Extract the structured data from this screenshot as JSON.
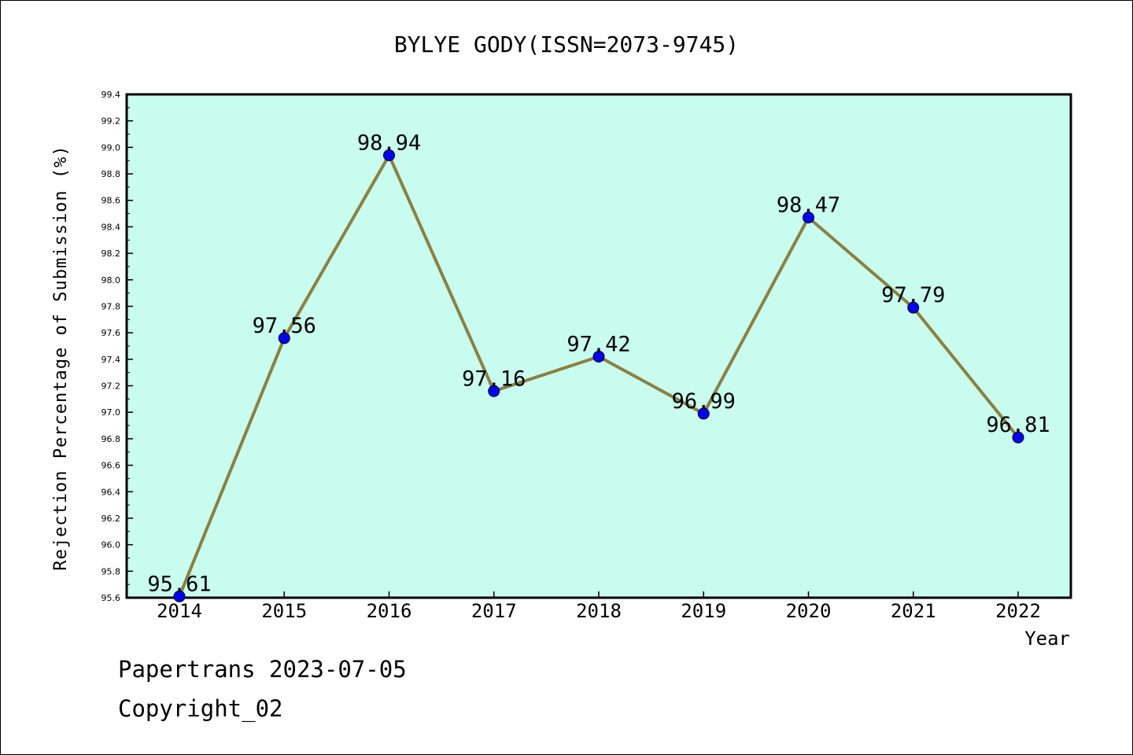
{
  "chart_data": {
    "type": "line",
    "title": "BYLYE GODY(ISSN=2073-9745)",
    "xlabel": "Year",
    "ylabel": "Rejection Percentage of Submission (%)",
    "categories": [
      "2014",
      "2015",
      "2016",
      "2017",
      "2018",
      "2019",
      "2020",
      "2021",
      "2022"
    ],
    "series": [
      {
        "values": [
          95.61,
          97.56,
          98.94,
          97.16,
          97.42,
          96.99,
          98.47,
          97.79,
          96.81
        ],
        "labels": [
          "95.61",
          "97.56",
          "98.94",
          "97.16",
          "97.42",
          "96.99",
          "98.47",
          "97.79",
          "96.81"
        ]
      }
    ],
    "ylim": [
      95.6,
      99.4
    ],
    "yticks": [
      "95.6",
      "95.8",
      "96.0",
      "96.2",
      "96.4",
      "96.6",
      "96.8",
      "97.0",
      "97.2",
      "97.4",
      "97.6",
      "97.8",
      "98.0",
      "98.2",
      "98.4",
      "98.6",
      "98.8",
      "99.0",
      "99.2",
      "99.4"
    ],
    "grid": false,
    "colors": {
      "plot_background": "#c8fcee",
      "line": "#8c8040",
      "marker": "#0000ff"
    }
  },
  "footer": {
    "line1": "Papertrans 2023-07-05",
    "line2": "Copyright_02"
  }
}
